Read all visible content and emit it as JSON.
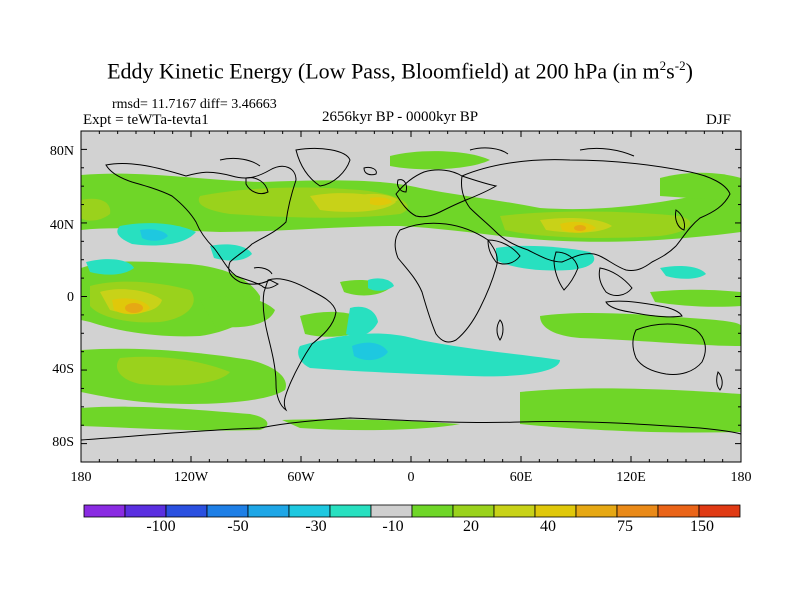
{
  "title": "Eddy Kinetic Energy (Low Pass, Bloomfield) at 200 hPa (in m",
  "title_sup1": "2",
  "title_mid": "s",
  "title_sup2": "-2",
  "title_end": ")",
  "stats": "rmsd= 11.7167 diff= 3.46663",
  "expt": "Expt = teWTa-tevta1",
  "period": "2656kyr BP - 0000kyr BP",
  "season": "DJF",
  "lat_labels": [
    "80N",
    "40N",
    "0",
    "40S",
    "80S"
  ],
  "lon_labels": [
    "180",
    "120W",
    "60W",
    "0",
    "60E",
    "120E",
    "180"
  ],
  "colorbar": {
    "colors": [
      "#8a2be2",
      "#5a2fe0",
      "#2a50e0",
      "#1e7fe6",
      "#1ea6e6",
      "#1ec8e0",
      "#28e0c0",
      "#cfcfcf",
      "#6fd628",
      "#9ad21c",
      "#c8d218",
      "#e0c80a",
      "#e6a814",
      "#ea8a18",
      "#ea6418",
      "#e03a14"
    ],
    "labels": [
      "-100",
      "-50",
      "-30",
      "-10",
      "20",
      "40",
      "75",
      "150"
    ]
  },
  "map_colors": {
    "ocean": "#d2d2d2",
    "low1": "#6fd628",
    "low2": "#9ad21c",
    "mid": "#c8d218",
    "warm": "#e0c80a",
    "hot": "#e6a814",
    "neg1": "#28e0c0",
    "neg2": "#1ec8e0",
    "neg3": "#1ea6e6"
  }
}
